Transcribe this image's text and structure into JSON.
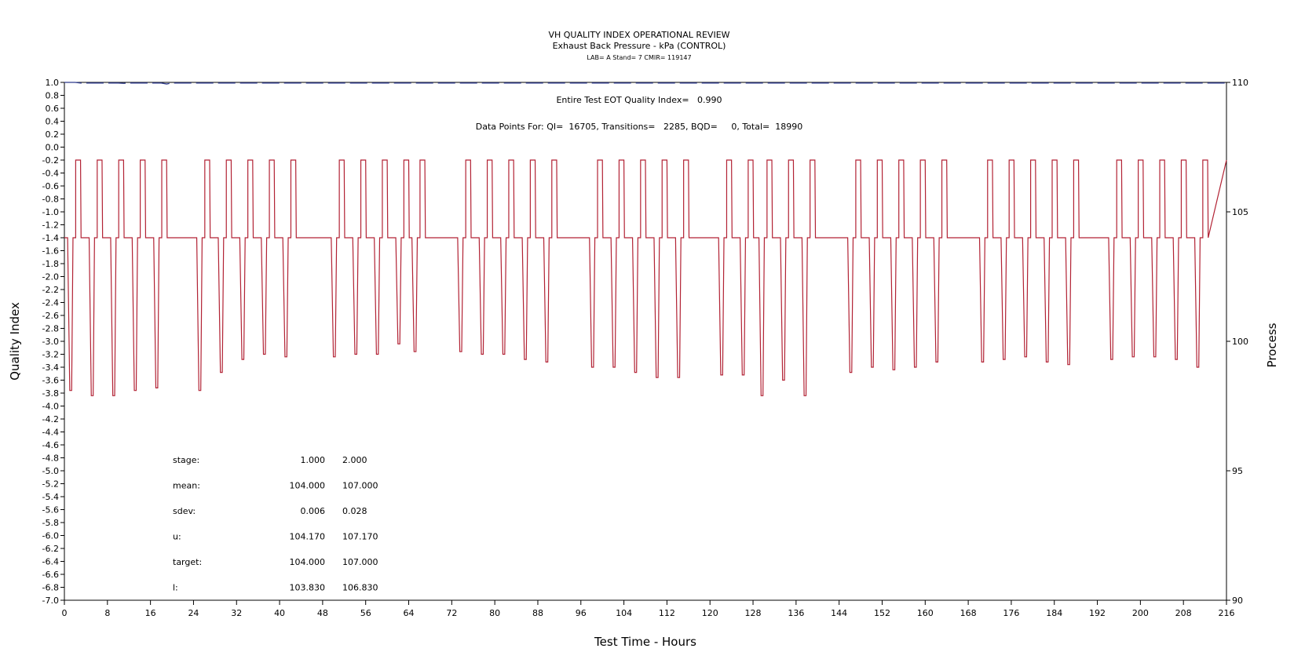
{
  "header": {
    "title": "VH QUALITY INDEX OPERATIONAL REVIEW",
    "subtitle": "Exhaust Back Pressure - kPa (CONTROL)",
    "lab_line": "LAB= A Stand= 7 CMIR= 119147"
  },
  "annotations": {
    "eot_line": "Entire Test EOT Quality Index=   0.990",
    "points_line": "Data Points For: QI=  16705, Transitions=   2285, BQD=     0, Total=  18990"
  },
  "stats": {
    "rows": [
      {
        "label": "stage:",
        "v1": "1.000",
        "v2": "2.000"
      },
      {
        "label": "mean:",
        "v1": "104.000",
        "v2": "107.000"
      },
      {
        "label": "sdev:",
        "v1": "0.006",
        "v2": "0.028"
      },
      {
        "label": "u:",
        "v1": "104.170",
        "v2": "107.170"
      },
      {
        "label": "target:",
        "v1": "104.000",
        "v2": "107.000"
      },
      {
        "label": "l:",
        "v1": "103.830",
        "v2": "106.830"
      }
    ]
  },
  "chart_data": {
    "type": "line",
    "xlabel": "Test Time - Hours",
    "ylabel": "Quality Index",
    "y2label": "Process",
    "xlim": [
      0,
      216
    ],
    "ylim": [
      -7.0,
      1.0
    ],
    "y2lim": [
      90,
      110
    ],
    "x_ticks": [
      "0",
      "8",
      "16",
      "24",
      "32",
      "40",
      "48",
      "56",
      "64",
      "72",
      "80",
      "88",
      "96",
      "104",
      "112",
      "120",
      "128",
      "136",
      "144",
      "152",
      "160",
      "168",
      "176",
      "184",
      "192",
      "200",
      "208",
      "216"
    ],
    "y_ticks": [
      "1.0",
      "0.8",
      "0.6",
      "0.4",
      "0.2",
      "0.0",
      "-0.2",
      "-0.4",
      "-0.6",
      "-0.8",
      "-1.0",
      "-1.2",
      "-1.4",
      "-1.6",
      "-1.8",
      "-2.0",
      "-2.2",
      "-2.4",
      "-2.6",
      "-2.8",
      "-3.0",
      "-3.2",
      "-3.4",
      "-3.6",
      "-3.8",
      "-4.0",
      "-4.2",
      "-4.4",
      "-4.6",
      "-4.8",
      "-5.0",
      "-5.2",
      "-5.4",
      "-5.6",
      "-5.8",
      "-6.0",
      "-6.2",
      "-6.4",
      "-6.6",
      "-6.8",
      "-7.0"
    ],
    "y2_ticks": [
      "110",
      "105",
      "100",
      "95",
      "90"
    ],
    "series": [
      {
        "role": "quality_index",
        "color": "#2e3a8c",
        "style": "dashed",
        "points": [
          [
            0,
            1.0
          ],
          [
            2,
            1.0
          ],
          [
            3,
            0.99
          ],
          [
            10,
            0.99
          ],
          [
            11,
            0.985
          ],
          [
            12,
            0.99
          ],
          [
            18,
            0.99
          ],
          [
            19,
            0.975
          ],
          [
            20,
            0.99
          ],
          [
            216,
            0.99
          ]
        ]
      },
      {
        "role": "process",
        "color": "#b22234",
        "style": "solid",
        "cycle_low": 104.0,
        "cycle_high": 107.0,
        "cycles": [
          {
            "start": 0.0,
            "dip": 98.1
          },
          {
            "start": 4.0,
            "dip": 97.9
          },
          {
            "start": 8.0,
            "dip": 97.9
          },
          {
            "start": 12.0,
            "dip": 98.1
          },
          {
            "start": 16.0,
            "dip": 98.2
          },
          {
            "start": 24.0,
            "dip": 98.1
          },
          {
            "start": 28.0,
            "dip": 98.8
          },
          {
            "start": 32.0,
            "dip": 99.3
          },
          {
            "start": 36.0,
            "dip": 99.5
          },
          {
            "start": 40.0,
            "dip": 99.4
          },
          {
            "start": 49.0,
            "dip": 99.4
          },
          {
            "start": 53.0,
            "dip": 99.5
          },
          {
            "start": 57.0,
            "dip": 99.5
          },
          {
            "start": 61.0,
            "dip": 99.9
          },
          {
            "start": 64.0,
            "dip": 99.6
          },
          {
            "start": 72.5,
            "dip": 99.6
          },
          {
            "start": 76.5,
            "dip": 99.5
          },
          {
            "start": 80.5,
            "dip": 99.5
          },
          {
            "start": 84.5,
            "dip": 99.3
          },
          {
            "start": 88.5,
            "dip": 99.2
          },
          {
            "start": 97.0,
            "dip": 99.0
          },
          {
            "start": 101.0,
            "dip": 99.0
          },
          {
            "start": 105.0,
            "dip": 98.8
          },
          {
            "start": 109.0,
            "dip": 98.6
          },
          {
            "start": 113.0,
            "dip": 98.6
          },
          {
            "start": 121.0,
            "dip": 98.7
          },
          {
            "start": 125.0,
            "dip": 98.7
          },
          {
            "start": 128.5,
            "dip": 97.9
          },
          {
            "start": 132.5,
            "dip": 98.5
          },
          {
            "start": 136.5,
            "dip": 97.9
          },
          {
            "start": 145.0,
            "dip": 98.8
          },
          {
            "start": 149.0,
            "dip": 99.0
          },
          {
            "start": 153.0,
            "dip": 98.9
          },
          {
            "start": 157.0,
            "dip": 99.0
          },
          {
            "start": 161.0,
            "dip": 99.2
          },
          {
            "start": 169.5,
            "dip": 99.2
          },
          {
            "start": 173.5,
            "dip": 99.3
          },
          {
            "start": 177.5,
            "dip": 99.4
          },
          {
            "start": 181.5,
            "dip": 99.2
          },
          {
            "start": 185.5,
            "dip": 99.1
          },
          {
            "start": 193.5,
            "dip": 99.3
          },
          {
            "start": 197.5,
            "dip": 99.4
          },
          {
            "start": 201.5,
            "dip": 99.4
          },
          {
            "start": 205.5,
            "dip": 99.3
          },
          {
            "start": 209.5,
            "dip": 99.0
          }
        ]
      }
    ]
  }
}
